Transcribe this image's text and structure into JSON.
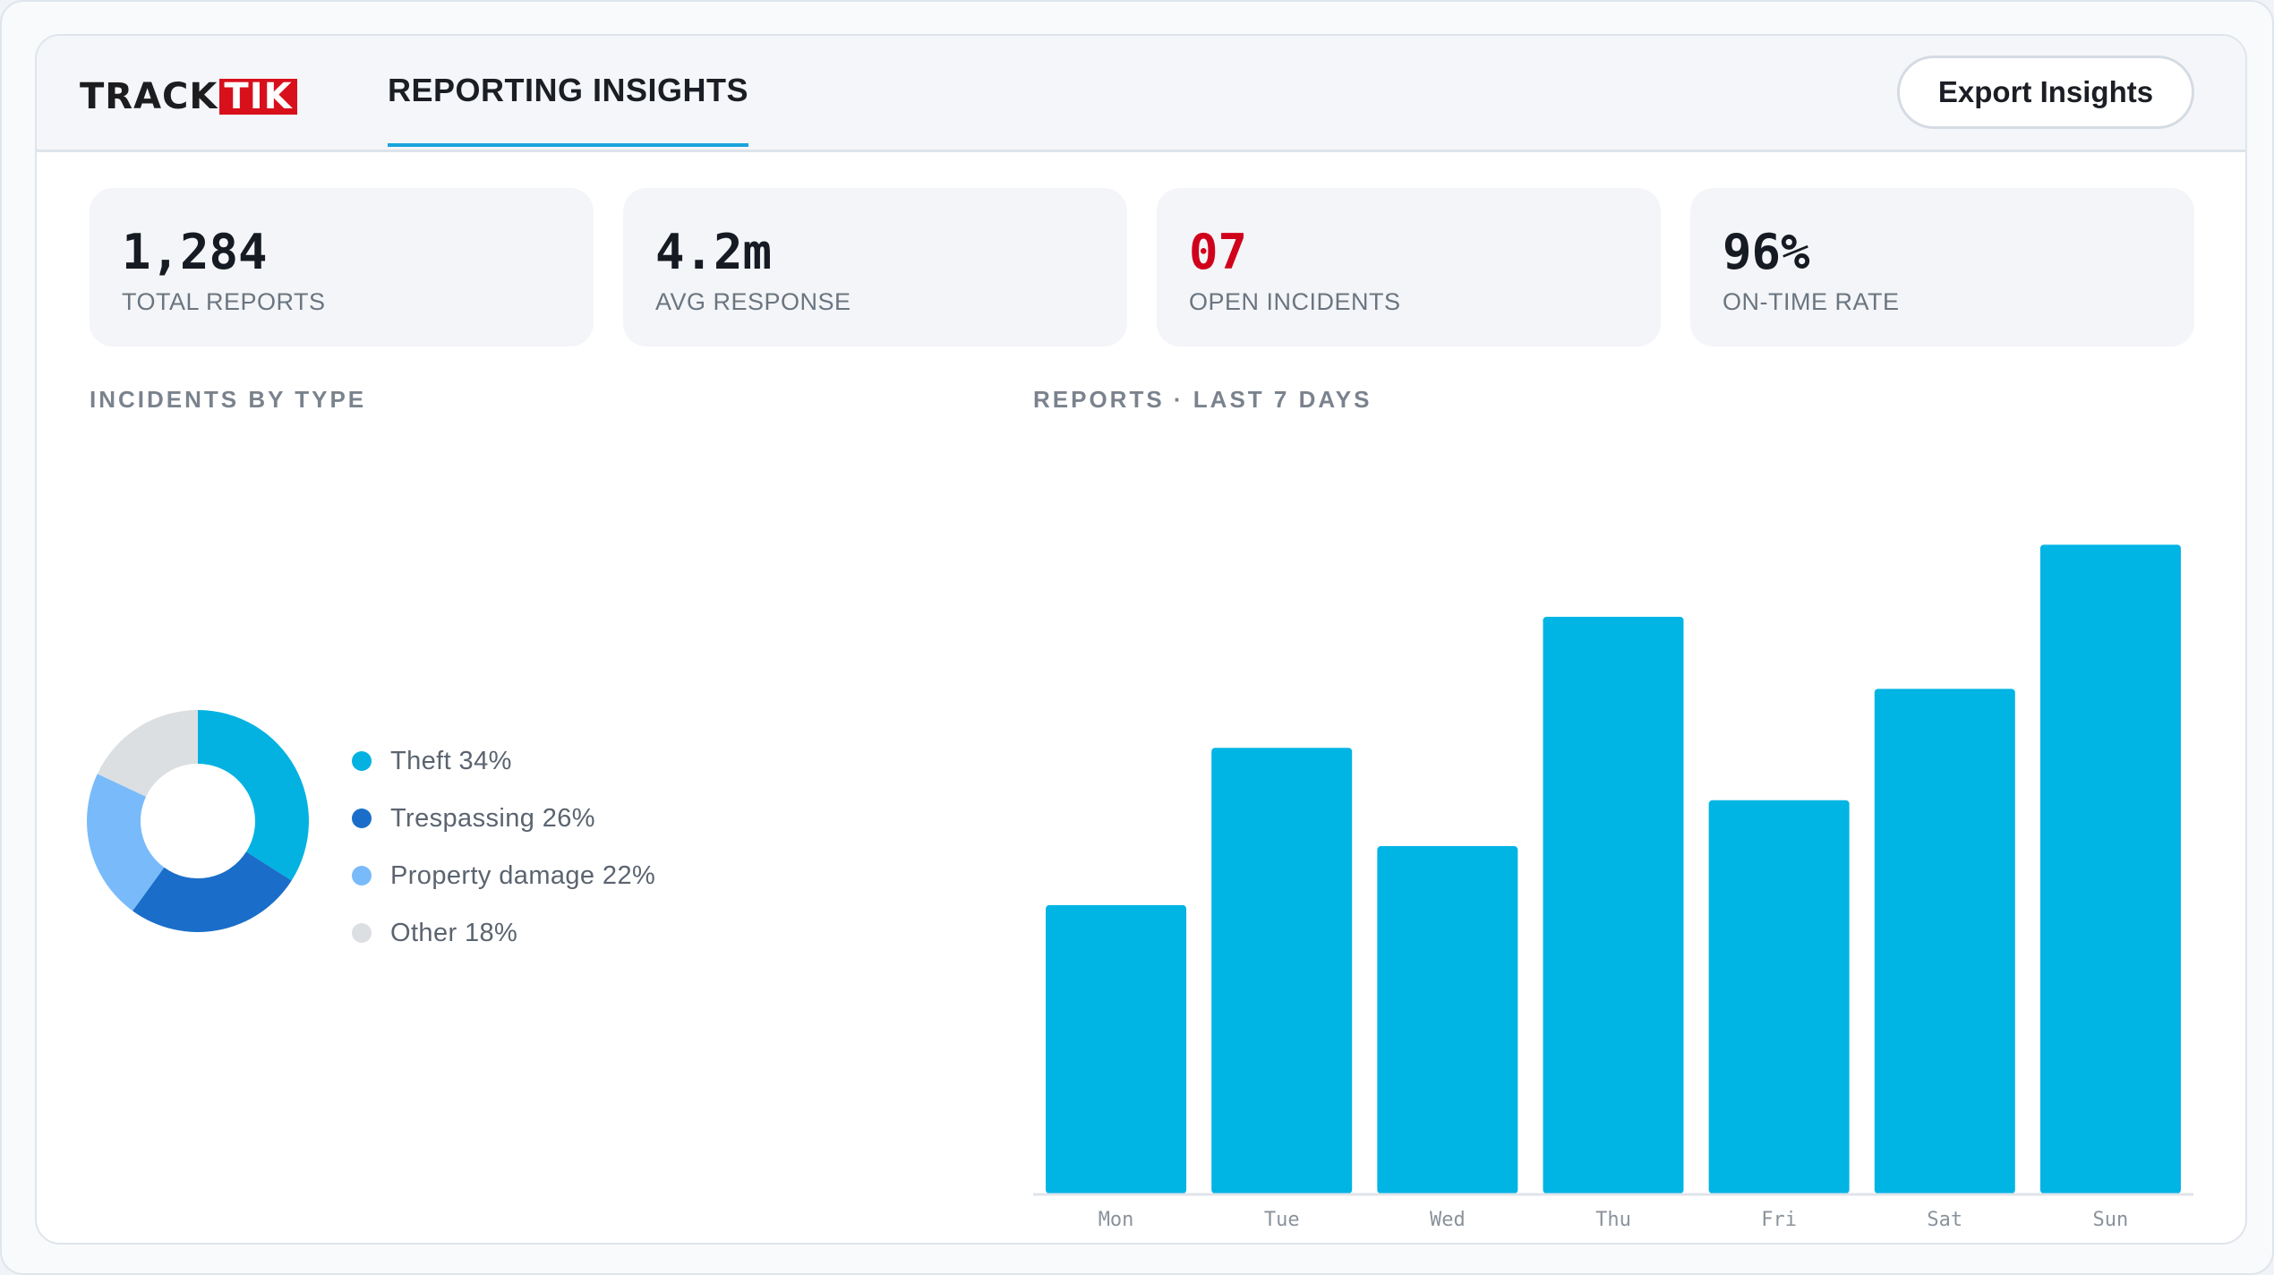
{
  "brand": {
    "logo_left": "TRACK",
    "logo_right": "TIK"
  },
  "header": {
    "tab_label": "REPORTING INSIGHTS",
    "export_label": "Export Insights"
  },
  "stats": [
    {
      "value": "1,284",
      "label": "TOTAL REPORTS"
    },
    {
      "value": "4.2m",
      "label": "AVG RESPONSE"
    },
    {
      "value": "07",
      "label": "OPEN INCIDENTS"
    },
    {
      "value": "96%",
      "label": "ON-TIME RATE"
    }
  ],
  "colors": {
    "accent": "#00b4e4",
    "alert": "#d0021b"
  },
  "incidents": {
    "title": "INCIDENTS BY TYPE",
    "legend": [
      "Theft 34%",
      "Trespassing 26%",
      "Property damage 22%",
      "Other 18%"
    ]
  },
  "reports": {
    "title": "REPORTS · LAST 7 DAYS"
  },
  "chart_data": [
    {
      "type": "pie",
      "title": "INCIDENTS BY TYPE",
      "categories": [
        "Theft",
        "Trespassing",
        "Property damage",
        "Other"
      ],
      "values": [
        34,
        26,
        22,
        18
      ],
      "colors": [
        "#04b2e2",
        "#1a6ec9",
        "#79bbfa",
        "#dcdfe2"
      ],
      "donut": true,
      "legend": "right"
    },
    {
      "type": "bar",
      "title": "REPORTS · LAST 7 DAYS",
      "categories": [
        "Mon",
        "Tue",
        "Wed",
        "Thu",
        "Fri",
        "Sat",
        "Sun"
      ],
      "values": [
        44,
        68,
        53,
        88,
        60,
        77,
        99
      ],
      "ylim": [
        0,
        100
      ],
      "color": "#00b4e4",
      "grid": false
    }
  ]
}
